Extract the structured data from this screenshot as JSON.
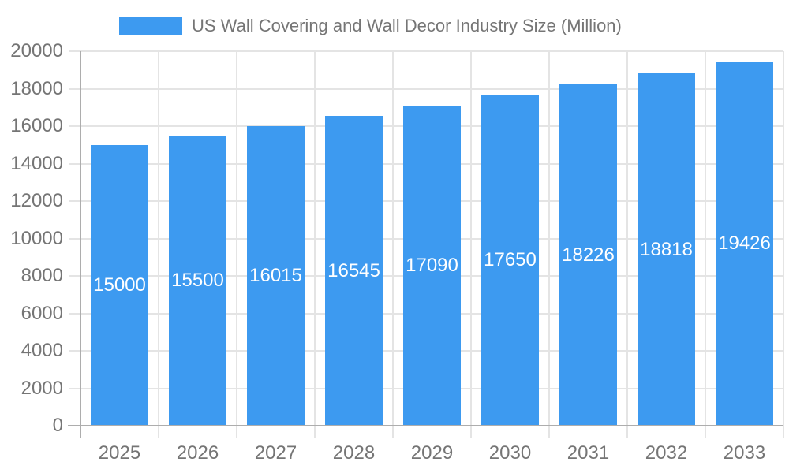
{
  "chart_data": {
    "type": "bar",
    "title": "US Wall Covering and Wall Decor Industry Size (Million)",
    "categories": [
      "2025",
      "2026",
      "2027",
      "2028",
      "2029",
      "2030",
      "2031",
      "2032",
      "2033"
    ],
    "values": [
      15000,
      15500,
      16015,
      16545,
      17090,
      17650,
      18226,
      18818,
      19426
    ],
    "xlabel": "",
    "ylabel": "",
    "ylim": [
      0,
      20000
    ],
    "ytick_step": 2000,
    "grid": true,
    "legend_position": "top",
    "bar_labels_visible": true,
    "colors": {
      "bar": "#3D9AF0",
      "bar_label": "#FFFFFF",
      "axis_line": "#ADADAD",
      "grid_line": "#E4E4E4",
      "tick_label": "#757575",
      "legend_text": "#757575",
      "background": "#FFFFFF"
    }
  }
}
